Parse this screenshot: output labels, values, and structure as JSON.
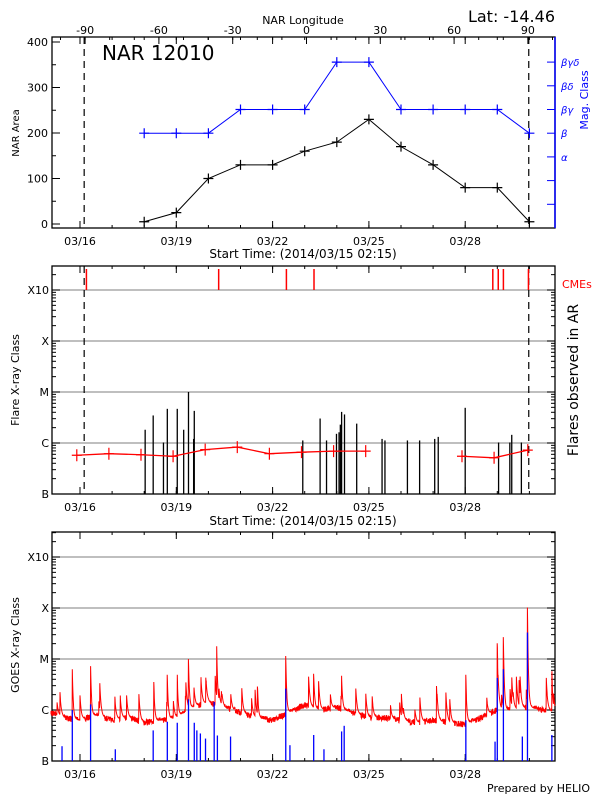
{
  "header": {
    "lat_label": "Lat: -14.46",
    "region_title": "NAR 12010",
    "footer": "Prepared by HELIO"
  },
  "colors": {
    "black": "#000000",
    "red": "#ff0000",
    "blue": "#0000ff",
    "grid": "#999999"
  },
  "chart_data": [
    {
      "type": "line",
      "title": "NAR 12010",
      "xlabel": "Start Time: (2014/03/15 02:15)",
      "ylabel": "NAR Area",
      "y2label": "Mag. Class",
      "top_axis_label": "NAR Longitude",
      "x_unit": "days since 2014/03/15 00:00",
      "xlim": [
        0.094,
        15.8
      ],
      "ylim": [
        0,
        400
      ],
      "xticks": [
        {
          "day": 1,
          "label": "03/16"
        },
        {
          "day": 4,
          "label": "03/19"
        },
        {
          "day": 7,
          "label": "03/22"
        },
        {
          "day": 10,
          "label": "03/25"
        },
        {
          "day": 13,
          "label": "03/28"
        }
      ],
      "yticks": [
        0,
        100,
        200,
        300,
        400
      ],
      "longitude_ticks": [
        -90,
        -60,
        -30,
        0,
        30,
        60,
        90
      ],
      "mag_class_levels": [
        {
          "level": 3,
          "label": "α"
        },
        {
          "level": 4,
          "label": "β"
        },
        {
          "level": 5,
          "label": "βγ"
        },
        {
          "level": 6,
          "label": "βδ"
        },
        {
          "level": 7,
          "label": "βγδ"
        }
      ],
      "dashed_lines_days": [
        1.13,
        14.98
      ],
      "series": [
        {
          "name": "NAR Area",
          "color": "#000000",
          "x": [
            3,
            4,
            5,
            6,
            7,
            8,
            9,
            10,
            11,
            12,
            13,
            14,
            15
          ],
          "y": [
            5,
            25,
            100,
            130,
            130,
            160,
            180,
            230,
            170,
            130,
            80,
            80,
            5
          ]
        },
        {
          "name": "Mag. Class",
          "color": "#0000ff",
          "x": [
            3,
            4,
            5,
            6,
            7,
            8,
            9,
            10,
            11,
            12,
            13,
            14,
            15
          ],
          "y": [
            4,
            4,
            4,
            5,
            5,
            5,
            7,
            7,
            5,
            5,
            5,
            5,
            4
          ]
        }
      ]
    },
    {
      "type": "bar",
      "xlabel": "Start Time: (2014/03/15 02:15)",
      "ylabel": "Flare X-ray Class",
      "y2label": "Flares observed in AR",
      "cme_label": "CMEs",
      "y_unit": "decades above B-class (B=0, C=1, M=2, X=3, X10=4)",
      "xlim": [
        0.094,
        15.8
      ],
      "ylim": [
        0,
        4.47
      ],
      "yticks": [
        {
          "v": 0,
          "label": "B"
        },
        {
          "v": 1,
          "label": "C"
        },
        {
          "v": 2,
          "label": "M"
        },
        {
          "v": 3,
          "label": "X"
        },
        {
          "v": 4,
          "label": "X10"
        }
      ],
      "xticks": [
        {
          "day": 1,
          "label": "03/16"
        },
        {
          "day": 4,
          "label": "03/19"
        },
        {
          "day": 7,
          "label": "03/22"
        },
        {
          "day": 10,
          "label": "03/25"
        },
        {
          "day": 13,
          "label": "03/28"
        }
      ],
      "dashed_lines_days": [
        1.13,
        14.98
      ],
      "cmes_days": [
        1.2,
        5.32,
        7.43,
        8.29,
        13.86,
        14.03,
        14.19,
        14.97
      ],
      "flares": {
        "day": [
          3.03,
          3.28,
          3.6,
          3.72,
          4.03,
          4.23,
          4.38,
          4.54,
          4.56,
          7.94,
          8.48,
          8.68,
          8.99,
          9.07,
          9.11,
          9.15,
          9.24,
          9.62,
          10.41,
          10.5,
          11.2,
          11.58,
          12.05,
          12.16,
          13.0,
          14.04,
          14.39,
          14.45,
          14.75
        ],
        "class": [
          1.26,
          1.54,
          1.01,
          1.67,
          1.67,
          1.26,
          2.0,
          1.08,
          1.63,
          1.05,
          1.48,
          1.05,
          1.18,
          1.21,
          1.36,
          1.61,
          1.56,
          1.38,
          1.08,
          1.05,
          1.05,
          1.05,
          1.08,
          1.12,
          1.69,
          1.01,
          1.01,
          1.16,
          1.01
        ]
      },
      "background_segments": [
        {
          "day": [
            0.9,
            1.9,
            2.9,
            3.9,
            4.9,
            5.9,
            6.9,
            7.9,
            8.9,
            9.9
          ],
          "class": [
            0.76,
            0.79,
            0.77,
            0.74,
            0.87,
            0.92,
            0.79,
            0.82,
            0.84,
            0.84
          ]
        },
        {
          "day": [
            12.9,
            13.9,
            14.95
          ],
          "class": [
            0.74,
            0.71,
            0.86
          ]
        }
      ]
    },
    {
      "type": "line",
      "ylabel": "GOES X-ray Class",
      "y_unit": "decades above B-class (B=0, C=1, M=2, X=3, X10=4)",
      "xlim": [
        0.094,
        15.8
      ],
      "ylim": [
        0,
        4.49
      ],
      "yticks": [
        {
          "v": 0,
          "label": "B"
        },
        {
          "v": 1,
          "label": "C"
        },
        {
          "v": 2,
          "label": "M"
        },
        {
          "v": 3,
          "label": "X"
        },
        {
          "v": 4,
          "label": "X10"
        }
      ],
      "xticks": [
        {
          "day": 1,
          "label": "03/16"
        },
        {
          "day": 4,
          "label": "03/19"
        },
        {
          "day": 7,
          "label": "03/22"
        },
        {
          "day": 10,
          "label": "03/25"
        },
        {
          "day": 13,
          "label": "03/28"
        }
      ],
      "long_channel_baseline": {
        "day": [
          0.1,
          0.5,
          1,
          1.5,
          2,
          2.5,
          3,
          3.5,
          4,
          4.5,
          5,
          5.5,
          6,
          6.5,
          7,
          7.5,
          8,
          8.5,
          9,
          9.5,
          10,
          10.5,
          11,
          11.5,
          12,
          12.5,
          13,
          13.5,
          14,
          14.5,
          15,
          15.5,
          15.8
        ],
        "class": [
          0.95,
          0.85,
          0.8,
          0.9,
          0.8,
          0.85,
          0.75,
          0.8,
          0.85,
          1.05,
          1.15,
          1.05,
          0.95,
          0.85,
          0.8,
          0.95,
          1.1,
          1.0,
          1.05,
          0.95,
          0.85,
          0.85,
          0.8,
          0.75,
          0.8,
          0.75,
          0.72,
          0.85,
          1.0,
          1.0,
          1.05,
          1.0,
          0.95
        ]
      },
      "long_channel_peaks": {
        "day": [
          0.76,
          1.33,
          3.3,
          3.72,
          4.03,
          4.38,
          5.26,
          6.53,
          7.41,
          8.28,
          9.15,
          13.02,
          14.0,
          14.19,
          14.94,
          15.7
        ],
        "class": [
          1.8,
          1.86,
          1.55,
          1.69,
          1.69,
          2.0,
          2.25,
          1.46,
          2.06,
          1.71,
          1.67,
          1.69,
          2.31,
          2.43,
          3.01,
          1.76
        ]
      },
      "short_channel_peaks": {
        "day": [
          0.44,
          0.76,
          1.33,
          2.1,
          3.28,
          3.72,
          4.03,
          4.38,
          4.56,
          4.64,
          4.75,
          4.91,
          5.18,
          5.28,
          5.69,
          7.41,
          7.54,
          8.28,
          8.6,
          9.15,
          9.23,
          13.02,
          13.93,
          14.0,
          14.19,
          14.78,
          14.94,
          15.7
        ],
        "class": [
          0.29,
          1.0,
          1.11,
          0.23,
          0.6,
          0.77,
          0.75,
          1.21,
          0.75,
          0.6,
          0.54,
          0.44,
          1.16,
          0.5,
          0.48,
          1.42,
          0.31,
          0.51,
          0.23,
          0.58,
          0.69,
          0.8,
          0.38,
          1.63,
          1.8,
          0.48,
          2.52,
          0.51
        ]
      }
    }
  ]
}
